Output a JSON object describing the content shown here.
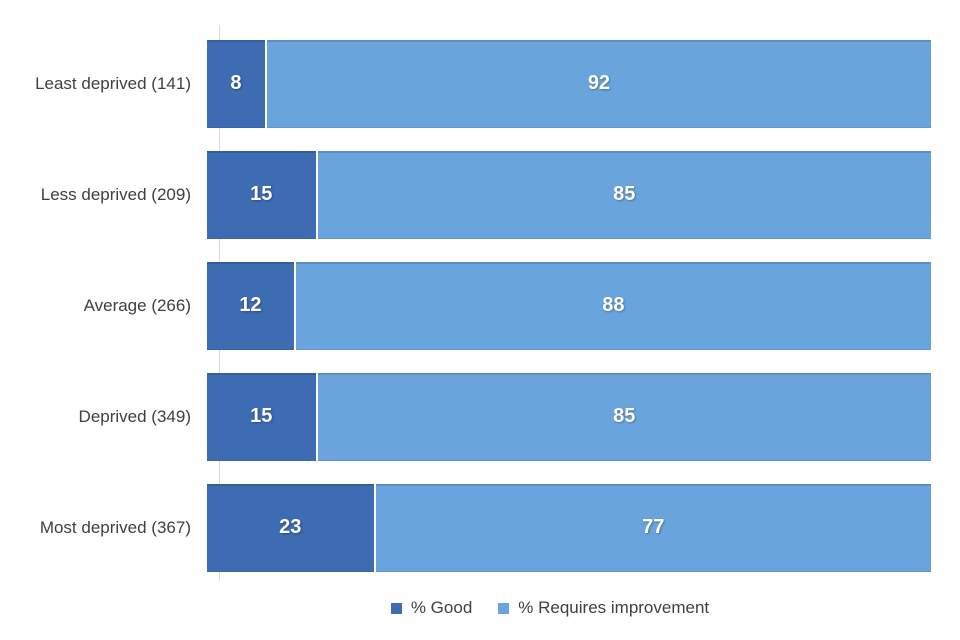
{
  "chart_data": {
    "type": "bar",
    "variant": "horizontal-stacked",
    "orientation": "horizontal",
    "categories": [
      "Least deprived (141)",
      "Less deprived (209)",
      "Average (266)",
      "Deprived (349)",
      "Most deprived (367)"
    ],
    "series": [
      {
        "name": "% Good",
        "color": "#3e6cb3",
        "values": [
          8,
          15,
          12,
          15,
          23
        ]
      },
      {
        "name": "% Requires improvement",
        "color": "#69a5dc",
        "values": [
          92,
          85,
          88,
          85,
          77
        ]
      }
    ],
    "xlim": [
      0,
      100
    ],
    "value_labels_shown": true,
    "value_label_color": "#ffffff",
    "category_label_color": "#404040",
    "legend_position": "bottom",
    "axis_line_color": "#d9d9d9",
    "grid": "off",
    "background": "#ffffff",
    "title": "",
    "xlabel": "",
    "ylabel": ""
  }
}
